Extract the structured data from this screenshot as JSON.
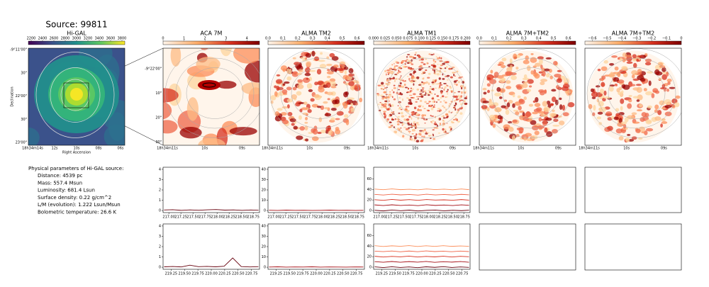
{
  "title": "Source: 99811",
  "chart_data": [
    {
      "type": "image",
      "title": "Hi-GAL",
      "cmap": "viridis",
      "colorbar": {
        "lim": [
          2150,
          3850
        ],
        "ticks": [
          2200,
          2400,
          2600,
          2800,
          3000,
          3200,
          3400,
          3600,
          3800
        ]
      },
      "x_tick_labels": [
        "18h34m14s",
        "12s",
        "10s",
        "08s",
        "06s"
      ],
      "y_tick_labels": [
        "-9°11'00\"",
        "30\"",
        "22'00\"",
        "30\"",
        "23'00\""
      ],
      "xlabel": "Right Ascension",
      "ylabel": "Declination"
    },
    {
      "type": "image",
      "title": "ACA 7M",
      "cmap": "reds",
      "colorbar": {
        "lim": [
          0,
          4.6
        ],
        "ticks": [
          0,
          1,
          2,
          3,
          4
        ]
      },
      "x_tick_labels": [
        "18h34m11s",
        "10s",
        "09s"
      ],
      "y_tick_labels": [
        "-9°22'00\"",
        "10\"",
        "20\"",
        "30\""
      ]
    },
    {
      "type": "image",
      "title": "ALMA TM2",
      "cmap": "reds",
      "colorbar": {
        "lim": [
          0,
          0.65
        ],
        "ticks": [
          {
            "value": 0,
            "label": "0.0"
          },
          0.1,
          0.2,
          0.3,
          0.4,
          0.5,
          0.6
        ]
      },
      "x_tick_labels": [
        "18h34m11s",
        "10s",
        "09s"
      ]
    },
    {
      "type": "image",
      "title": "ALMA TM1",
      "cmap": "reds",
      "colorbar": {
        "lim": [
          0,
          0.21
        ],
        "ticks": [
          {
            "value": 0,
            "label": "0.000"
          },
          0.025,
          {
            "value": 0.05,
            "label": "0.050"
          },
          0.075,
          {
            "value": 0.1,
            "label": "0.100"
          },
          0.125,
          {
            "value": 0.15,
            "label": "0.150"
          },
          0.175,
          {
            "value": 0.2,
            "label": "0.200"
          }
        ]
      },
      "x_tick_labels": [
        "18h34m11s",
        "10s",
        "09s"
      ]
    },
    {
      "type": "image",
      "title": "ALMA 7M+TM2",
      "cmap": "reds",
      "colorbar": {
        "lim": [
          0,
          0.65
        ],
        "ticks": [
          {
            "value": 0,
            "label": "0.0"
          },
          0.1,
          0.2,
          0.3,
          0.4,
          0.5,
          0.6
        ]
      },
      "x_tick_labels": [
        "18h34m11s",
        "10s",
        "09s"
      ]
    },
    {
      "type": "image",
      "title": "ALMA 7M+TM2",
      "cmap": "reds",
      "colorbar": {
        "lim": [
          -0.65,
          0
        ],
        "ticks": [
          {
            "value": -0.6,
            "label": "−0.6"
          },
          {
            "value": -0.5,
            "label": "−0.5"
          },
          {
            "value": -0.4,
            "label": "−0.4"
          },
          {
            "value": -0.3,
            "label": "−0.3"
          },
          {
            "value": -0.2,
            "label": "−0.2"
          },
          {
            "value": -0.1,
            "label": "−0.1"
          },
          0
        ]
      },
      "x_tick_labels": [
        "18h34m11s",
        "10s",
        "09s"
      ]
    },
    {
      "type": "line",
      "x": [
        216.9,
        217.08,
        217.26,
        217.44,
        217.62,
        217.8,
        217.98,
        218.16,
        218.34,
        218.52,
        218.7,
        218.86
      ],
      "xlim": [
        216.88,
        218.88
      ],
      "xticks": [
        {
          "value": 217,
          "label": "217.00"
        },
        217.25,
        {
          "value": 217.5,
          "label": "217.50"
        },
        217.75,
        {
          "value": 218,
          "label": "218.00"
        },
        218.25,
        {
          "value": 218.5,
          "label": "218.50"
        },
        218.75
      ],
      "ylim": [
        -0.2,
        4.2
      ],
      "yticks": [
        0,
        1,
        2,
        3,
        4
      ],
      "series": [
        {
          "color": "#67000d",
          "values": [
            0.05,
            0.08,
            0.02,
            0.06,
            0.03,
            0.07,
            0.1,
            0.04,
            0.06,
            0.02,
            0.05,
            0.03
          ]
        }
      ]
    },
    {
      "type": "line",
      "x": [
        216.9,
        217.08,
        217.26,
        217.44,
        217.62,
        217.8,
        217.98,
        218.16,
        218.34,
        218.52,
        218.7,
        218.86
      ],
      "xlim": [
        216.88,
        218.88
      ],
      "xticks": [
        {
          "value": 217,
          "label": "217.00"
        },
        217.25,
        {
          "value": 217.5,
          "label": "217.50"
        },
        217.75,
        {
          "value": 218,
          "label": "218.00"
        },
        218.25,
        {
          "value": 218.5,
          "label": "218.50"
        },
        218.75
      ],
      "ylim": [
        -2,
        42
      ],
      "yticks": [
        0,
        10,
        20,
        30,
        40
      ],
      "series": [
        {
          "color": "#a50f15",
          "values": [
            0.3,
            0.1,
            0.4,
            0.2,
            0.3,
            0.1,
            0.2,
            0.4,
            0.2,
            0.3,
            0.1,
            0.2
          ]
        }
      ]
    },
    {
      "type": "line",
      "x": [
        216.9,
        217.08,
        217.26,
        217.44,
        217.62,
        217.8,
        217.98,
        218.16,
        218.34,
        218.52,
        218.7,
        218.86
      ],
      "xlim": [
        216.88,
        218.88
      ],
      "xticks": [
        {
          "value": 217,
          "label": "217.00"
        },
        217.25,
        {
          "value": 217.5,
          "label": "217.50"
        },
        217.75,
        {
          "value": 218,
          "label": "218.00"
        },
        218.25,
        {
          "value": 218.5,
          "label": "218.50"
        },
        218.75
      ],
      "ylim": [
        -4,
        82
      ],
      "yticks": [
        0,
        20,
        40,
        60
      ],
      "series": [
        {
          "color": "#67000d",
          "values": [
            0.5,
            -0.8,
            0.9,
            -0.4,
            0.7,
            -0.9,
            0.3,
            0.8,
            -0.6,
            0.4,
            -0.3,
            0.6
          ]
        },
        {
          "color": "#a50f15",
          "values": [
            10.6,
            9.3,
            10.8,
            9.5,
            10.4,
            9.2,
            10.9,
            9.6,
            10.3,
            9.4,
            10.7,
            9.8
          ]
        },
        {
          "color": "#d7301f",
          "values": [
            20.4,
            19.2,
            20.9,
            19.5,
            20.6,
            19.3,
            20.8,
            19.7,
            20.2,
            19.4,
            20.7,
            19.6
          ]
        },
        {
          "color": "#ef6548",
          "values": [
            30.5,
            29.3,
            30.8,
            29.6,
            30.4,
            29.2,
            30.9,
            29.5,
            30.3,
            29.4,
            30.6,
            29.7
          ]
        },
        {
          "color": "#fc8d59",
          "values": [
            40.6,
            39.4,
            40.9,
            39.5,
            40.3,
            39.2,
            40.8,
            39.6,
            40.4,
            39.3,
            40.7,
            39.5
          ]
        }
      ]
    },
    {
      "type": "line",
      "x": [
        219.12,
        219.28,
        219.44,
        219.6,
        219.76,
        219.92,
        220.08,
        220.24,
        220.4,
        220.56,
        220.72,
        220.88
      ],
      "xlim": [
        219.1,
        220.9
      ],
      "xticks": [
        219.25,
        {
          "value": 219.5,
          "label": "219.50"
        },
        219.75,
        {
          "value": 220,
          "label": "220.00"
        },
        220.25,
        {
          "value": 220.5,
          "label": "220.50"
        },
        220.75
      ],
      "ylim": [
        -0.2,
        4.2
      ],
      "yticks": [
        0,
        1,
        2,
        3,
        4
      ],
      "series": [
        {
          "color": "#67000d",
          "values": [
            0.04,
            0.07,
            0.03,
            0.2,
            0.05,
            0.08,
            0.04,
            0.1,
            0.9,
            0.06,
            0.03,
            0.05
          ]
        }
      ]
    },
    {
      "type": "line",
      "x": [
        219.12,
        219.28,
        219.44,
        219.6,
        219.76,
        219.92,
        220.08,
        220.24,
        220.4,
        220.56,
        220.72,
        220.88
      ],
      "xlim": [
        219.1,
        220.9
      ],
      "xticks": [
        219.25,
        {
          "value": 219.5,
          "label": "219.50"
        },
        219.75,
        {
          "value": 220,
          "label": "220.00"
        },
        220.25,
        {
          "value": 220.5,
          "label": "220.50"
        },
        220.75
      ],
      "ylim": [
        -2,
        42
      ],
      "yticks": [
        0,
        10,
        20,
        30,
        40
      ],
      "series": [
        {
          "color": "#a50f15",
          "values": [
            0.2,
            0.4,
            0.1,
            0.3,
            0.2,
            0.4,
            0.1,
            0.3,
            0.2,
            0.1,
            0.3,
            0.2
          ]
        }
      ]
    },
    {
      "type": "line",
      "x": [
        219.12,
        219.28,
        219.44,
        219.6,
        219.76,
        219.92,
        220.08,
        220.24,
        220.4,
        220.56,
        220.72,
        220.88
      ],
      "xlim": [
        219.1,
        220.9
      ],
      "xticks": [
        219.25,
        {
          "value": 219.5,
          "label": "219.50"
        },
        219.75,
        {
          "value": 220,
          "label": "220.00"
        },
        220.25,
        {
          "value": 220.5,
          "label": "220.50"
        },
        220.75
      ],
      "ylim": [
        -4,
        82
      ],
      "yticks": [
        0,
        20,
        40,
        60
      ],
      "series": [
        {
          "color": "#67000d",
          "values": [
            0.6,
            -0.7,
            0.8,
            -0.5,
            0.4,
            -0.9,
            0.7,
            -0.3,
            0.9,
            -0.6,
            0.5,
            -0.4
          ]
        },
        {
          "color": "#a50f15",
          "values": [
            10.5,
            9.4,
            10.8,
            9.3,
            10.6,
            9.5,
            10.9,
            9.2,
            10.4,
            9.6,
            10.7,
            9.4
          ]
        },
        {
          "color": "#d7301f",
          "values": [
            20.7,
            19.3,
            20.5,
            19.6,
            20.9,
            19.2,
            20.4,
            19.5,
            20.8,
            19.3,
            20.6,
            19.7
          ]
        },
        {
          "color": "#ef6548",
          "values": [
            30.4,
            29.5,
            30.7,
            29.2,
            30.6,
            29.4,
            30.8,
            29.6,
            30.3,
            29.3,
            30.5,
            29.6
          ]
        },
        {
          "color": "#fc8d59",
          "values": [
            40.8,
            39.3,
            40.5,
            39.6,
            40.9,
            39.2,
            40.6,
            39.4,
            40.7,
            39.5,
            40.3,
            39.6
          ]
        }
      ]
    }
  ],
  "parameters": {
    "heading": "Physical parameters of Hi-GAL source:",
    "lines": [
      "Distance: 4539 pc",
      "Mass: 557.4 Msun",
      "Luminosity: 681.4 Lsun",
      "Surface density: 0.22 g/cm^2",
      "L/M (evolution): 1.222 Lsun/Msun",
      "Bolometric temperature: 26.6 K"
    ]
  }
}
